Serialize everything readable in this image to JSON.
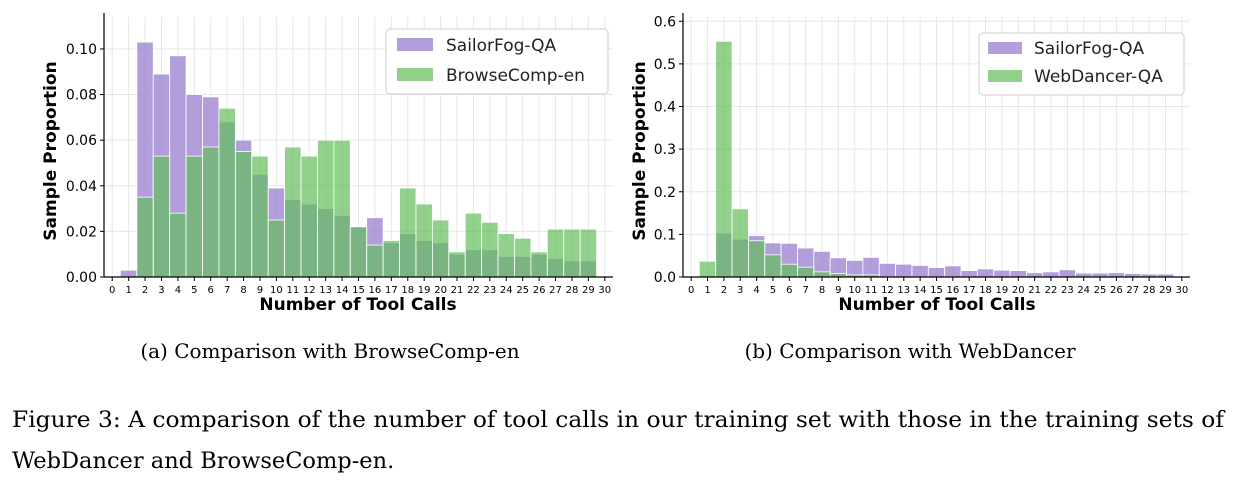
{
  "colors": {
    "sailorfog": "#9a7ed0",
    "green": "#63bd5b",
    "grid": "#e6e6e6",
    "axis": "#000000"
  },
  "chart_data": [
    {
      "type": "bar",
      "title": "",
      "xlabel": "Number of Tool Calls",
      "ylabel": "Sample Proportion",
      "x": [
        0,
        1,
        2,
        3,
        4,
        5,
        6,
        7,
        8,
        9,
        10,
        11,
        12,
        13,
        14,
        15,
        16,
        17,
        18,
        19,
        20,
        21,
        22,
        23,
        24,
        25,
        26,
        27,
        28,
        29,
        30
      ],
      "xlim": [
        -0.5,
        30.5
      ],
      "ylim": [
        0,
        0.114
      ],
      "yticks": [
        "0.00",
        "0.02",
        "0.04",
        "0.06",
        "0.08",
        "0.10"
      ],
      "grid": true,
      "legend_location": "top-right",
      "series": [
        {
          "name": "SailorFog-QA",
          "color_key": "sailorfog",
          "values": [
            0,
            0.003,
            0.103,
            0.089,
            0.097,
            0.08,
            0.079,
            0.068,
            0.06,
            0.045,
            0.039,
            0.034,
            0.032,
            0.03,
            0.027,
            0.022,
            0.026,
            0.015,
            0.019,
            0.016,
            0.015,
            0.01,
            0.012,
            0.012,
            0.009,
            0.009,
            0.01,
            0.008,
            0.007,
            0.007,
            0
          ]
        },
        {
          "name": "BrowseComp-en",
          "color_key": "green",
          "values": [
            0,
            0,
            0.035,
            0.053,
            0.028,
            0.053,
            0.057,
            0.074,
            0.055,
            0.053,
            0.025,
            0.057,
            0.053,
            0.06,
            0.06,
            0.022,
            0.014,
            0.016,
            0.039,
            0.032,
            0.025,
            0.011,
            0.028,
            0.024,
            0.019,
            0.017,
            0.011,
            0.021,
            0.021,
            0.021,
            0
          ]
        }
      ],
      "caption": "(a) Comparison with BrowseComp-en"
    },
    {
      "type": "bar",
      "title": "",
      "xlabel": "Number of Tool Calls",
      "ylabel": "Sample Proportion",
      "x": [
        0,
        1,
        2,
        3,
        4,
        5,
        6,
        7,
        8,
        9,
        10,
        11,
        12,
        13,
        14,
        15,
        16,
        17,
        18,
        19,
        20,
        21,
        22,
        23,
        24,
        25,
        26,
        27,
        28,
        29,
        30
      ],
      "xlim": [
        -0.5,
        30.5
      ],
      "ylim": [
        0,
        0.61
      ],
      "yticks": [
        "0.0",
        "0.1",
        "0.2",
        "0.3",
        "0.4",
        "0.5",
        "0.6"
      ],
      "grid": true,
      "legend_location": "top-right",
      "series": [
        {
          "name": "SailorFog-QA",
          "color_key": "sailorfog",
          "values": [
            0,
            0.003,
            0.103,
            0.089,
            0.097,
            0.08,
            0.079,
            0.068,
            0.06,
            0.045,
            0.039,
            0.046,
            0.032,
            0.03,
            0.027,
            0.022,
            0.026,
            0.015,
            0.019,
            0.016,
            0.015,
            0.01,
            0.012,
            0.017,
            0.009,
            0.009,
            0.01,
            0.008,
            0.007,
            0.007,
            0
          ]
        },
        {
          "name": "WebDancer-QA",
          "color_key": "green",
          "values": [
            0,
            0.037,
            0.553,
            0.16,
            0.085,
            0.052,
            0.03,
            0.023,
            0.012,
            0.008,
            0.005,
            0.005,
            0,
            0,
            0,
            0,
            0,
            0,
            0,
            0,
            0,
            0,
            0,
            0,
            0,
            0,
            0,
            0,
            0,
            0,
            0
          ]
        }
      ],
      "caption": "(b) Comparison with WebDancer"
    }
  ],
  "figure_caption": {
    "line1": "Figure 3: A comparison of the number of tool calls in our training set with those in the training sets of",
    "line2": "WebDancer and BrowseComp-en."
  }
}
